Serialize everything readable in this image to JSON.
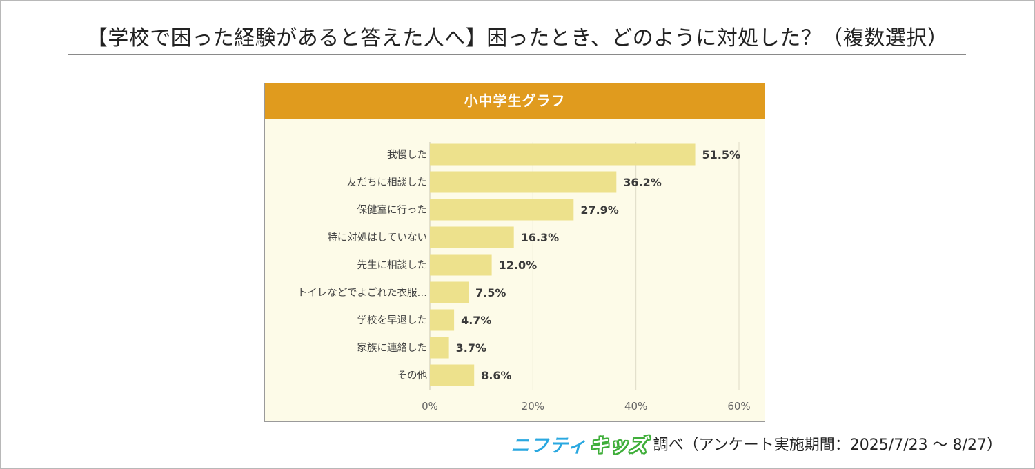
{
  "title": "【学校で困った経験があると答えた人へ】困ったとき、どのように対処した？（複数選択）",
  "panel_title": "小中学生グラフ",
  "footer": {
    "brand_part1": "ニフティ",
    "brand_part2": "キッズ",
    "source": "調べ（アンケート実施期間：2025/7/23 ～ 8/27）"
  },
  "colors": {
    "bar": "#ede18c",
    "header": "#e09b1e",
    "panel_bg": "#fdfbe8",
    "grid": "#dedbc6",
    "brand_blue": "#2aa8e0",
    "brand_green": "#3fae3a"
  },
  "chart_data": {
    "type": "bar",
    "orientation": "horizontal",
    "title": "小中学生グラフ",
    "categories": [
      "我慢した",
      "友だちに相談した",
      "保健室に行った",
      "特に対処はしていない",
      "先生に相談した",
      "トイレなどでよごれた衣服…",
      "学校を早退した",
      "家族に連絡した",
      "その他"
    ],
    "values": [
      51.5,
      36.2,
      27.9,
      16.3,
      12.0,
      7.5,
      4.7,
      3.7,
      8.6
    ],
    "value_labels": [
      "51.5%",
      "36.2%",
      "27.9%",
      "16.3%",
      "12.0%",
      "7.5%",
      "4.7%",
      "3.7%",
      "8.6%"
    ],
    "xlim": [
      0,
      60
    ],
    "xticks": [
      0,
      20,
      40,
      60
    ],
    "xtick_labels": [
      "0%",
      "20%",
      "40%",
      "60%"
    ],
    "grid": true,
    "legend": "none"
  }
}
